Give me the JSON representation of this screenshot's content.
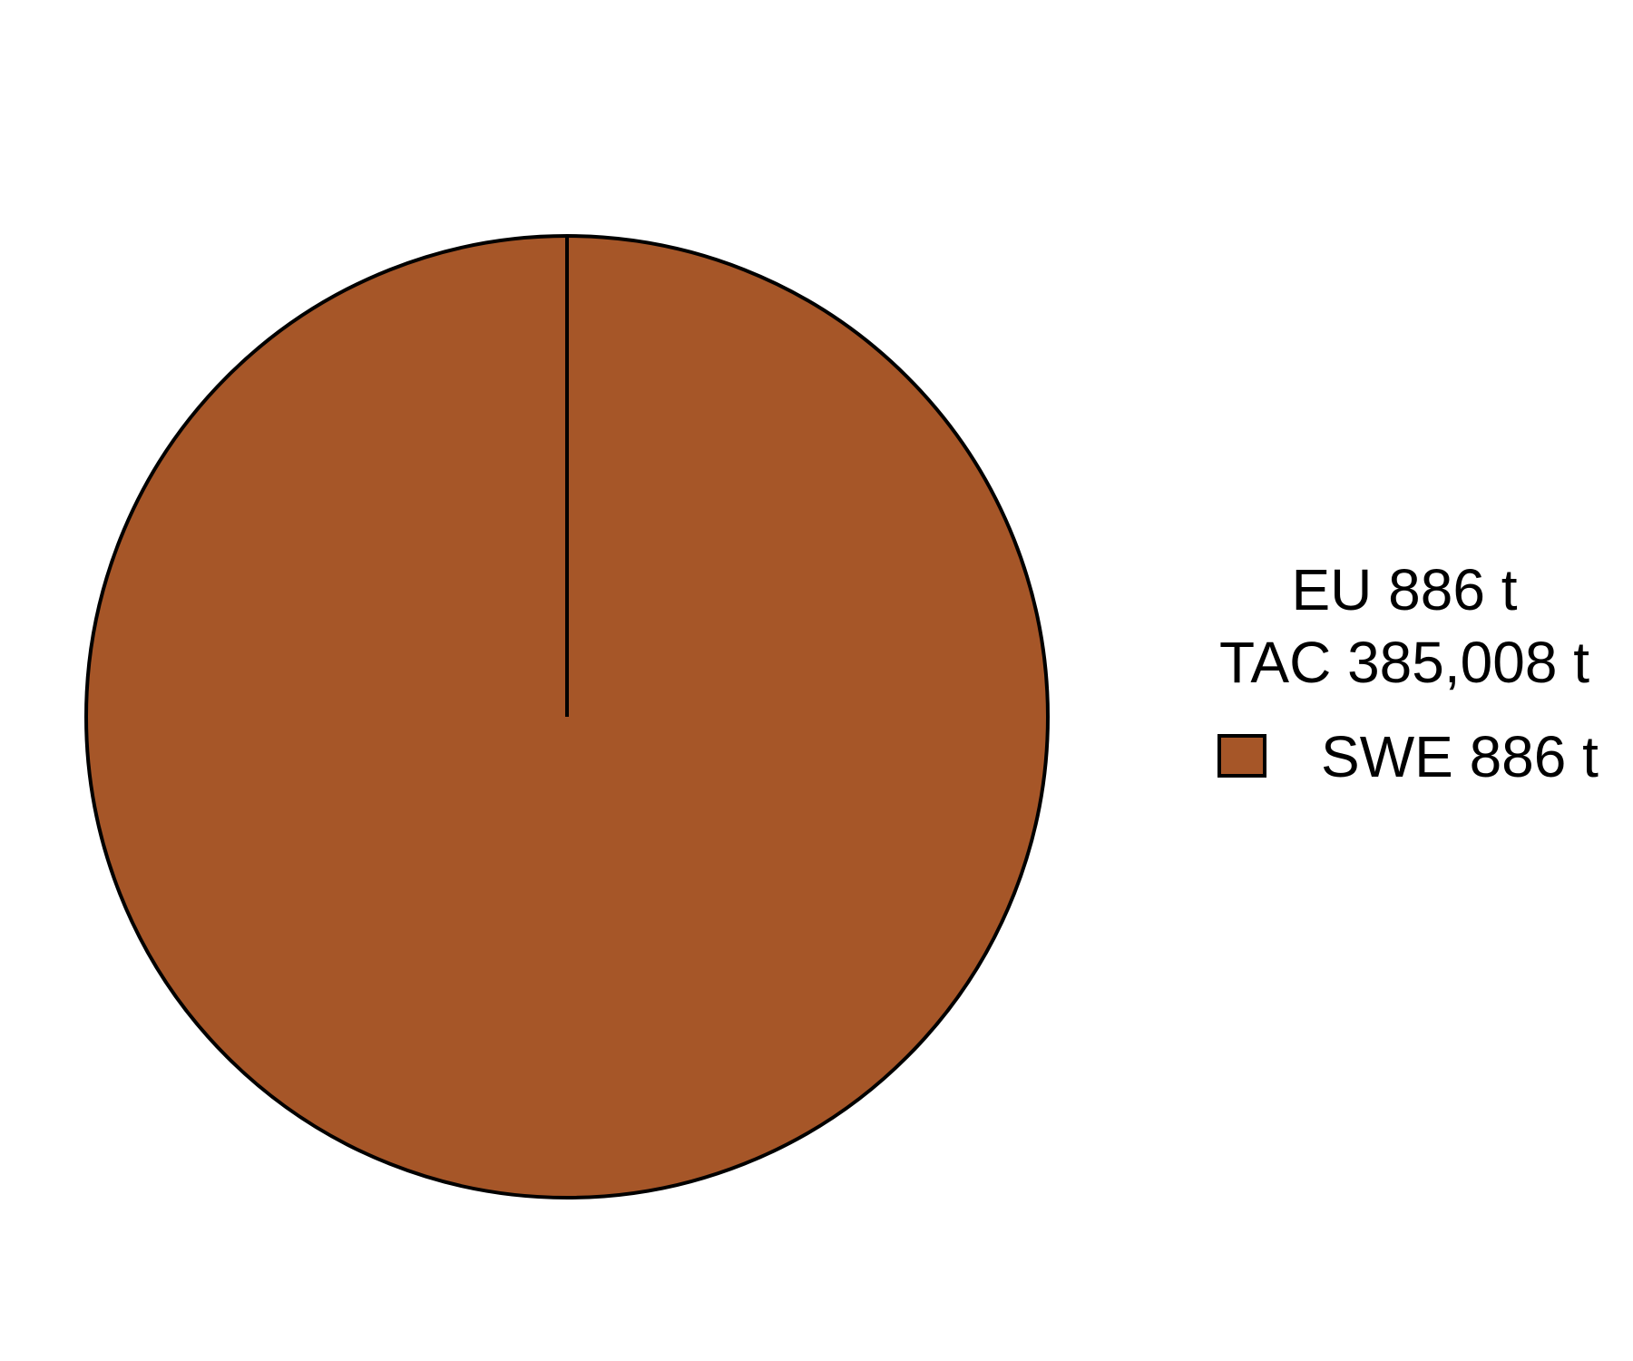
{
  "chart_data": {
    "type": "pie",
    "legend_title_lines": [
      "EU 886 t",
      "TAC 385,008 t"
    ],
    "legend_placement": "right",
    "slices": [
      {
        "label": "SWE 886 t",
        "value": 886,
        "color": "#A65628"
      }
    ],
    "outline_color": "#000000",
    "background": "#FFFFFF"
  }
}
